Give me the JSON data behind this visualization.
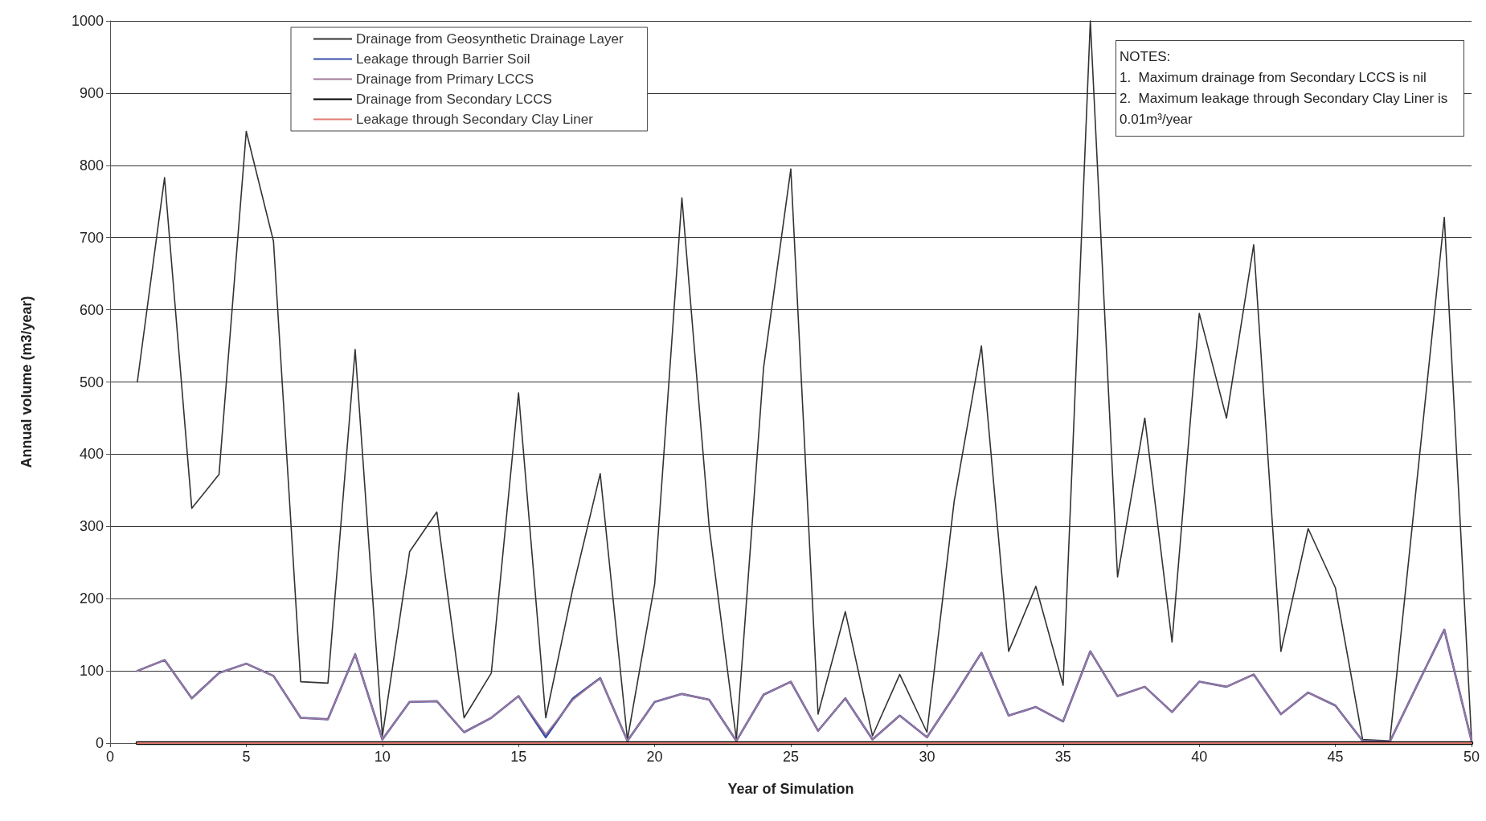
{
  "chart_data": {
    "type": "line",
    "xlabel": "Year of Simulation",
    "ylabel": "Annual volume (m3/year)",
    "x": [
      1,
      2,
      3,
      4,
      5,
      6,
      7,
      8,
      9,
      10,
      11,
      12,
      13,
      14,
      15,
      16,
      17,
      18,
      19,
      20,
      21,
      22,
      23,
      24,
      25,
      26,
      27,
      28,
      29,
      30,
      31,
      32,
      33,
      34,
      35,
      36,
      37,
      38,
      39,
      40,
      41,
      42,
      43,
      44,
      45,
      46,
      47,
      48,
      49,
      50
    ],
    "series": [
      {
        "name": "Drainage from Geosynthetic Drainage Layer",
        "color": "#333333",
        "values": [
          500,
          783,
          325,
          372,
          847,
          695,
          85,
          83,
          545,
          10,
          265,
          320,
          35,
          97,
          485,
          35,
          215,
          373,
          5,
          220,
          755,
          300,
          5,
          520,
          795,
          40,
          182,
          10,
          95,
          15,
          335,
          550,
          127,
          217,
          80,
          1000,
          230,
          450,
          140,
          595,
          450,
          690,
          127,
          297,
          215,
          5,
          3,
          365,
          728,
          5
        ]
      },
      {
        "name": "Leakage through Barrier Soil",
        "color": "#3a4fa8",
        "values": [
          100,
          115,
          62,
          97,
          110,
          93,
          35,
          33,
          123,
          5,
          57,
          58,
          15,
          35,
          65,
          8,
          62,
          90,
          3,
          57,
          68,
          60,
          3,
          67,
          85,
          17,
          62,
          5,
          38,
          8,
          65,
          125,
          38,
          50,
          30,
          127,
          65,
          78,
          43,
          85,
          78,
          95,
          40,
          70,
          52,
          3,
          2,
          80,
          157,
          3
        ]
      },
      {
        "name": "Drainage from Primary LCCS",
        "color": "#a07898",
        "values": [
          100,
          115,
          62,
          97,
          110,
          93,
          35,
          33,
          123,
          5,
          57,
          58,
          15,
          35,
          65,
          12,
          60,
          90,
          3,
          57,
          68,
          60,
          3,
          67,
          85,
          17,
          62,
          5,
          38,
          8,
          65,
          125,
          38,
          50,
          30,
          127,
          65,
          78,
          43,
          85,
          78,
          95,
          40,
          70,
          52,
          3,
          2,
          80,
          157,
          3
        ]
      },
      {
        "name": "Drainage from Secondary LCCS",
        "color": "#000000",
        "values": [
          0,
          0,
          0,
          0,
          0,
          0,
          0,
          0,
          0,
          0,
          0,
          0,
          0,
          0,
          0,
          0,
          0,
          0,
          0,
          0,
          0,
          0,
          0,
          0,
          0,
          0,
          0,
          0,
          0,
          0,
          0,
          0,
          0,
          0,
          0,
          0,
          0,
          0,
          0,
          0,
          0,
          0,
          0,
          0,
          0,
          0,
          0,
          0,
          0,
          0
        ]
      },
      {
        "name": "Leakage through Secondary Clay Liner",
        "color": "#e07a70",
        "values": [
          0,
          0,
          0,
          0,
          0,
          0,
          0,
          0,
          0,
          0,
          0,
          0,
          0,
          0,
          0,
          0,
          0,
          0,
          0,
          0,
          0,
          0,
          0,
          0,
          0,
          0,
          0,
          0,
          0,
          0,
          0,
          0,
          0,
          0,
          0,
          0,
          0,
          0,
          0,
          0,
          0,
          0,
          0,
          0,
          0,
          0,
          0,
          0,
          0,
          0
        ]
      }
    ],
    "xlim": [
      0,
      50
    ],
    "xticks": [
      0,
      5,
      10,
      15,
      20,
      25,
      30,
      35,
      40,
      45,
      50
    ],
    "ylim": [
      0,
      1000
    ],
    "yticks": [
      0,
      100,
      200,
      300,
      400,
      500,
      600,
      700,
      800,
      900,
      1000
    ],
    "grid": "y",
    "legend": "top left",
    "marker": "none",
    "line_style": "solid",
    "annotations": [
      "NOTES:",
      "1.  Maximum drainage from Secondary LCCS is nil",
      "2.  Maximum leakage through Secondary Clay Liner is 0.01m³/year"
    ]
  }
}
